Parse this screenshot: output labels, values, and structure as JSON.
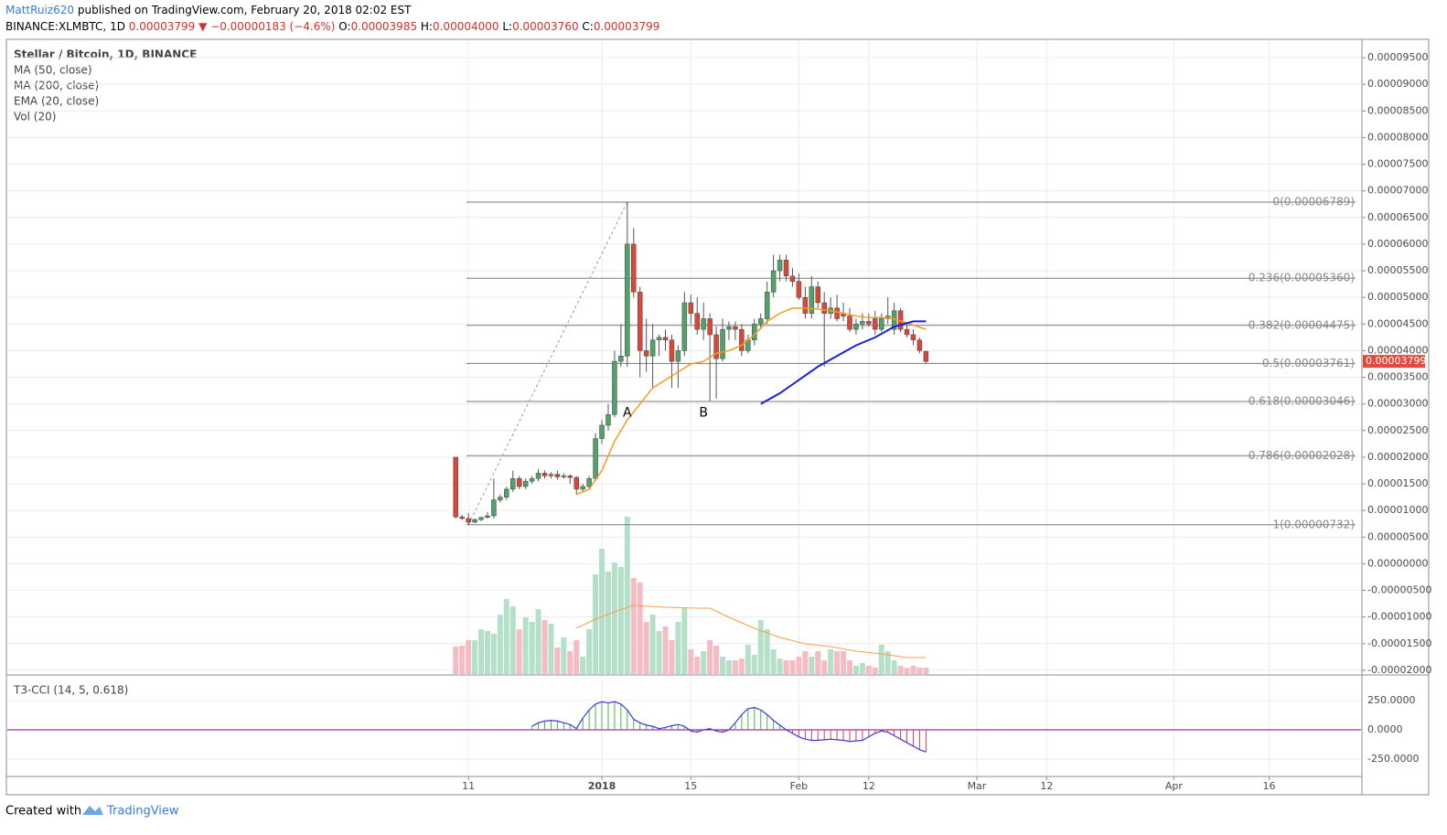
{
  "header": {
    "author": "MattRuiz620",
    "published": " published on TradingView.com, February 20, 2018 02:02 EST",
    "ticker": [
      {
        "text": "BINANCE:XLMBTC, 1D ",
        "color": "#000000"
      },
      {
        "text": "0.00003799 ",
        "color": "#d32f2f"
      },
      {
        "text": "▼ ",
        "color": "#d32f2f"
      },
      {
        "text": "−0.00000183 (−4.6%) ",
        "color": "#d32f2f"
      },
      {
        "text": "O:",
        "color": "#000000"
      },
      {
        "text": "0.00003985 ",
        "color": "#d32f2f"
      },
      {
        "text": "H:",
        "color": "#000000"
      },
      {
        "text": "0.00004000 ",
        "color": "#d32f2f"
      },
      {
        "text": "L:",
        "color": "#000000"
      },
      {
        "text": "0.00003760 ",
        "color": "#d32f2f"
      },
      {
        "text": "C:",
        "color": "#000000"
      },
      {
        "text": "0.00003799",
        "color": "#d32f2f"
      }
    ]
  },
  "footer": {
    "created": "Created with",
    "brand": "TradingView"
  },
  "chart_data": [
    {
      "type": "candlestick",
      "title": "Stellar / Bitcoin, 1D, BINANCE",
      "indicators": [
        "MA (50, close)",
        "MA (200, close)",
        "EMA (20, close)",
        "Vol (20)"
      ],
      "x": [
        -23,
        -22,
        -21,
        -20,
        -19,
        -18,
        -17,
        -16,
        -15,
        -14,
        -13,
        -12,
        -11,
        -10,
        -9,
        -8,
        -7,
        -6,
        -5,
        -4,
        -3,
        -2,
        -1,
        0,
        1,
        2,
        3,
        4,
        5,
        6,
        7,
        8,
        9,
        10,
        11,
        12,
        13,
        14,
        15,
        16,
        17,
        18,
        19,
        20,
        21,
        22,
        23,
        24,
        25,
        26,
        27,
        28,
        29,
        30,
        31,
        32,
        33,
        34,
        35,
        36,
        37,
        38,
        39,
        40,
        41,
        42,
        43,
        44,
        45,
        46,
        47,
        48,
        49,
        50,
        51
      ],
      "open": [
        2e-05,
        8.8e-06,
        8.5e-06,
        7.8e-06,
        8.3e-06,
        8.7e-06,
        9e-06,
        1.2e-05,
        1.25e-05,
        1.4e-05,
        1.6e-05,
        1.45e-05,
        1.55e-05,
        1.6e-05,
        1.7e-05,
        1.65e-05,
        1.68e-05,
        1.63e-05,
        1.65e-05,
        1.62e-05,
        1.4e-05,
        1.45e-05,
        1.6e-05,
        2.35e-05,
        2.6e-05,
        2.8e-05,
        3.8e-05,
        3.9e-05,
        6e-05,
        5.1e-05,
        4e-05,
        3.9e-05,
        4.2e-05,
        4.25e-05,
        4.2e-05,
        3.8e-05,
        4e-05,
        4.9e-05,
        4.7e-05,
        4.4e-05,
        4.6e-05,
        4.3e-05,
        3.85e-05,
        4.4e-05,
        4.45e-05,
        4.4e-05,
        4e-05,
        4.2e-05,
        4.5e-05,
        4.6e-05,
        5.1e-05,
        5.5e-05,
        5.7e-05,
        5.4e-05,
        5.3e-05,
        5e-05,
        4.7e-05,
        5.2e-05,
        4.9e-05,
        4.7e-05,
        4.8e-05,
        4.7e-05,
        4.65e-05,
        4.4e-05,
        4.5e-05,
        4.55e-05,
        4.6e-05,
        4.4e-05,
        4.6e-05,
        4.4e-05,
        4.75e-05,
        4.4e-05,
        4.3e-05,
        4.2e-05,
        3.985e-05
      ],
      "high": [
        2e-05,
        9.2e-06,
        9.5e-06,
        8.5e-06,
        8.8e-06,
        9.7e-06,
        1.6e-05,
        1.3e-05,
        1.45e-05,
        1.75e-05,
        1.65e-05,
        1.6e-05,
        1.65e-05,
        1.78e-05,
        1.75e-05,
        1.72e-05,
        1.75e-05,
        1.7e-05,
        1.68e-05,
        1.65e-05,
        1.5e-05,
        1.65e-05,
        2.45e-05,
        2.7e-05,
        3e-05,
        4e-05,
        4.5e-05,
        6.789e-05,
        6.3e-05,
        5.2e-05,
        4.6e-05,
        4.5e-05,
        4.3e-05,
        4.4e-05,
        4.3e-05,
        4.1e-05,
        5.1e-05,
        5.05e-05,
        5e-05,
        4.9e-05,
        4.7e-05,
        4.45e-05,
        4.6e-05,
        4.55e-05,
        4.55e-05,
        4.5e-05,
        4.3e-05,
        4.6e-05,
        4.7e-05,
        5.3e-05,
        5.8e-05,
        5.8e-05,
        5.8e-05,
        5.55e-05,
        5.45e-05,
        5.2e-05,
        5.4e-05,
        5.3e-05,
        5.1e-05,
        5e-05,
        5.05e-05,
        4.9e-05,
        4.8e-05,
        4.6e-05,
        4.7e-05,
        4.7e-05,
        4.75e-05,
        4.7e-05,
        5e-05,
        4.9e-05,
        4.8e-05,
        4.5e-05,
        4.4e-05,
        4.25e-05,
        4e-05
      ],
      "low": [
        8.5e-06,
        8.2e-06,
        7.32e-06,
        7.6e-06,
        8e-06,
        8.5e-06,
        8.5e-06,
        1.15e-05,
        1.2e-05,
        1.35e-05,
        1.4e-05,
        1.4e-05,
        1.5e-05,
        1.55e-05,
        1.6e-05,
        1.6e-05,
        1.58e-05,
        1.6e-05,
        1.5e-05,
        1.3e-05,
        1.35e-05,
        1.4e-05,
        1.55e-05,
        2.25e-05,
        2.5e-05,
        2.75e-05,
        3.7e-05,
        3.7e-05,
        5e-05,
        3.5e-05,
        3.6e-05,
        3.3e-05,
        3.9e-05,
        4e-05,
        3.3e-05,
        3.3e-05,
        3.9e-05,
        4.5e-05,
        4.3e-05,
        4.2e-05,
        3.05e-05,
        3.1e-05,
        3.8e-05,
        4.2e-05,
        4.2e-05,
        3.9e-05,
        3.95e-05,
        4.1e-05,
        4.4e-05,
        4.5e-05,
        5e-05,
        5.3e-05,
        5.3e-05,
        5.2e-05,
        4.95e-05,
        4.6e-05,
        4.6e-05,
        4.8e-05,
        3.7e-05,
        4.6e-05,
        4.55e-05,
        4.55e-05,
        4.35e-05,
        4.3e-05,
        4.4e-05,
        4.45e-05,
        4.3e-05,
        4.35e-05,
        4.5e-05,
        4.3e-05,
        4.35e-05,
        4.25e-05,
        4.1e-05,
        3.95e-05,
        3.76e-05
      ],
      "close": [
        8.8e-06,
        8.5e-06,
        7.8e-06,
        8.3e-06,
        8.7e-06,
        9e-06,
        1.2e-05,
        1.25e-05,
        1.4e-05,
        1.6e-05,
        1.45e-05,
        1.55e-05,
        1.6e-05,
        1.7e-05,
        1.65e-05,
        1.68e-05,
        1.63e-05,
        1.65e-05,
        1.62e-05,
        1.4e-05,
        1.45e-05,
        1.6e-05,
        2.35e-05,
        2.6e-05,
        2.8e-05,
        3.8e-05,
        3.9e-05,
        6e-05,
        5.1e-05,
        4e-05,
        3.9e-05,
        4.2e-05,
        4.25e-05,
        4.2e-05,
        3.8e-05,
        4e-05,
        4.9e-05,
        4.7e-05,
        4.4e-05,
        4.6e-05,
        4.3e-05,
        3.85e-05,
        4.4e-05,
        4.45e-05,
        4.4e-05,
        4e-05,
        4.2e-05,
        4.5e-05,
        4.6e-05,
        5.1e-05,
        5.5e-05,
        5.7e-05,
        5.4e-05,
        5.3e-05,
        5e-05,
        4.7e-05,
        5.2e-05,
        4.9e-05,
        4.7e-05,
        4.8e-05,
        4.6e-05,
        4.65e-05,
        4.4e-05,
        4.5e-05,
        4.55e-05,
        4.5e-05,
        4.4e-05,
        4.6e-05,
        4.65e-05,
        4.75e-05,
        4.4e-05,
        4.3e-05,
        4.2e-05,
        4e-05,
        3.799e-05
      ],
      "up_color": "#53a06b",
      "down_color": "#d9473b",
      "volume": {
        "values": [
          30,
          31,
          37,
          37,
          49,
          47,
          44,
          65,
          82,
          74,
          49,
          62,
          57,
          71,
          59,
          55,
          29,
          40,
          25,
          37,
          19,
          49,
          109,
          137,
          112,
          122,
          117,
          172,
          105,
          100,
          57,
          65,
          47,
          52,
          37,
          57,
          72,
          27,
          19,
          25,
          37,
          31,
          19,
          15,
          15,
          17,
          32,
          21,
          59,
          49,
          27,
          17,
          15,
          15,
          19,
          25,
          19,
          25,
          15,
          27,
          25,
          25,
          15,
          9,
          12,
          9,
          7,
          32,
          25,
          15,
          9,
          7,
          9,
          7,
          7
        ],
        "up_color": "#b4e0c9",
        "down_color": "#f6bcc4",
        "ma": {
          "color": "#f5a04a",
          "x": [
            -4,
            -1,
            2,
            5,
            10,
            15,
            17,
            20,
            24,
            28,
            32,
            36,
            40,
            44,
            48,
            51
          ],
          "values": [
            50,
            60,
            68,
            75,
            73,
            72,
            72,
            62,
            50,
            40,
            33,
            30,
            25,
            22,
            18,
            18
          ]
        }
      },
      "ema": {
        "color": "#f39c1f",
        "x": [
          -4,
          -2,
          0,
          2,
          4,
          6,
          8,
          10,
          12,
          14,
          16,
          18,
          20,
          22,
          24,
          26,
          28,
          30,
          32,
          34,
          36,
          38,
          40,
          42,
          44,
          46,
          48,
          51
        ],
        "values": [
          1.3e-05,
          1.4e-05,
          1.75e-05,
          2.3e-05,
          2.7e-05,
          3e-05,
          3.3e-05,
          3.45e-05,
          3.6e-05,
          3.75e-05,
          3.8e-05,
          3.95e-05,
          4e-05,
          4.1e-05,
          4.3e-05,
          4.55e-05,
          4.7e-05,
          4.8e-05,
          4.8e-05,
          4.78e-05,
          4.75e-05,
          4.7e-05,
          4.65e-05,
          4.62e-05,
          4.62e-05,
          4.6e-05,
          4.52e-05,
          4.4e-05
        ]
      },
      "ma50": {
        "color": "#1f1fd6",
        "x": [
          25,
          28,
          31,
          34,
          37,
          40,
          43,
          46,
          49,
          51
        ],
        "values": [
          3e-05,
          3.2e-05,
          3.45e-05,
          3.7e-05,
          3.9e-05,
          4.1e-05,
          4.25e-05,
          4.45e-05,
          4.55e-05,
          4.55e-05
        ]
      },
      "fib_levels": [
        {
          "label": "0(0.00006789)",
          "value": 6.789e-05
        },
        {
          "label": "0.236(0.00005360)",
          "value": 5.36e-05
        },
        {
          "label": "0.382(0.00004475)",
          "value": 4.475e-05
        },
        {
          "label": "0.5(0.00003761)",
          "value": 3.761e-05
        },
        {
          "label": "0.618(0.00003046)",
          "value": 3.046e-05
        },
        {
          "label": "0.786(0.00002028)",
          "value": 2.028e-05
        },
        {
          "label": "1(0.00000732)",
          "value": 7.32e-06
        }
      ],
      "annotations": [
        {
          "text": "A",
          "x": 4,
          "y": 2.83e-05
        },
        {
          "text": "B",
          "x": 16,
          "y": 2.83e-05
        }
      ],
      "last_price_label": "0.00003799",
      "last_price_color": "#e04b3c",
      "xlim": [
        -93.7,
        119.6
      ],
      "xticks": [
        {
          "value": -21,
          "label": "11"
        },
        {
          "value": 0,
          "label": "2018"
        },
        {
          "value": 14,
          "label": "15"
        },
        {
          "value": 31,
          "label": "Feb"
        },
        {
          "value": 42,
          "label": "12"
        },
        {
          "value": 59,
          "label": "Mar"
        },
        {
          "value": 70,
          "label": "12"
        },
        {
          "value": 90,
          "label": "Apr"
        },
        {
          "value": 105,
          "label": "16"
        }
      ],
      "ylim": [
        -2.07e-05,
        9.81e-05
      ],
      "yticks": [
        {
          "value": 9.5e-05,
          "label": "0.00009500"
        },
        {
          "value": 9e-05,
          "label": "0.00009000"
        },
        {
          "value": 8.5e-05,
          "label": "0.00008500"
        },
        {
          "value": 8e-05,
          "label": "0.00008000"
        },
        {
          "value": 7.5e-05,
          "label": "0.00007500"
        },
        {
          "value": 7e-05,
          "label": "0.00007000"
        },
        {
          "value": 6.5e-05,
          "label": "0.00006500"
        },
        {
          "value": 6e-05,
          "label": "0.00006000"
        },
        {
          "value": 5.5e-05,
          "label": "0.00005500"
        },
        {
          "value": 5e-05,
          "label": "0.00005000"
        },
        {
          "value": 4.5e-05,
          "label": "0.00004500"
        },
        {
          "value": 4e-05,
          "label": "0.00004000"
        },
        {
          "value": 3.5e-05,
          "label": "0.00003500"
        },
        {
          "value": 3e-05,
          "label": "0.00003000"
        },
        {
          "value": 2.5e-05,
          "label": "0.00002500"
        },
        {
          "value": 2e-05,
          "label": "0.00002000"
        },
        {
          "value": 1.5e-05,
          "label": "0.00001500"
        },
        {
          "value": 1e-05,
          "label": "0.00001000"
        },
        {
          "value": 5e-06,
          "label": "0.00000500"
        },
        {
          "value": 0,
          "label": "0.00000000"
        },
        {
          "value": -5e-06,
          "label": "-0.00000500"
        },
        {
          "value": -1e-05,
          "label": "-0.00001000"
        },
        {
          "value": -1.5e-05,
          "label": "-0.00001500"
        },
        {
          "value": -2e-05,
          "label": "-0.00002000"
        }
      ],
      "grid": true
    },
    {
      "type": "line",
      "title": "T3-CCI (14, 5, 0.618)",
      "values": [
        null,
        null,
        null,
        null,
        null,
        null,
        null,
        null,
        null,
        null,
        null,
        null,
        30,
        60,
        75,
        80,
        75,
        60,
        45,
        10,
        100,
        170,
        220,
        240,
        230,
        240,
        220,
        170,
        90,
        60,
        40,
        30,
        10,
        20,
        35,
        45,
        30,
        -10,
        -20,
        0,
        10,
        -10,
        -20,
        0,
        60,
        130,
        180,
        190,
        170,
        130,
        80,
        40,
        0,
        -30,
        -60,
        -80,
        -90,
        -90,
        -85,
        -80,
        -85,
        -90,
        -100,
        -95,
        -90,
        -60,
        -30,
        -10,
        -20,
        -50,
        -80,
        -110,
        -140,
        -170,
        -190
      ],
      "color": "#3a3adb",
      "pos_color": "#4caf50",
      "neg_color": "#e53950",
      "zero_color": "#800080",
      "ylim": [
        -391,
        461
      ],
      "yticks": [
        {
          "value": 250,
          "label": "250.0000"
        },
        {
          "value": 0,
          "label": "0.0000"
        },
        {
          "value": -250,
          "label": "-250.0000"
        }
      ]
    }
  ]
}
